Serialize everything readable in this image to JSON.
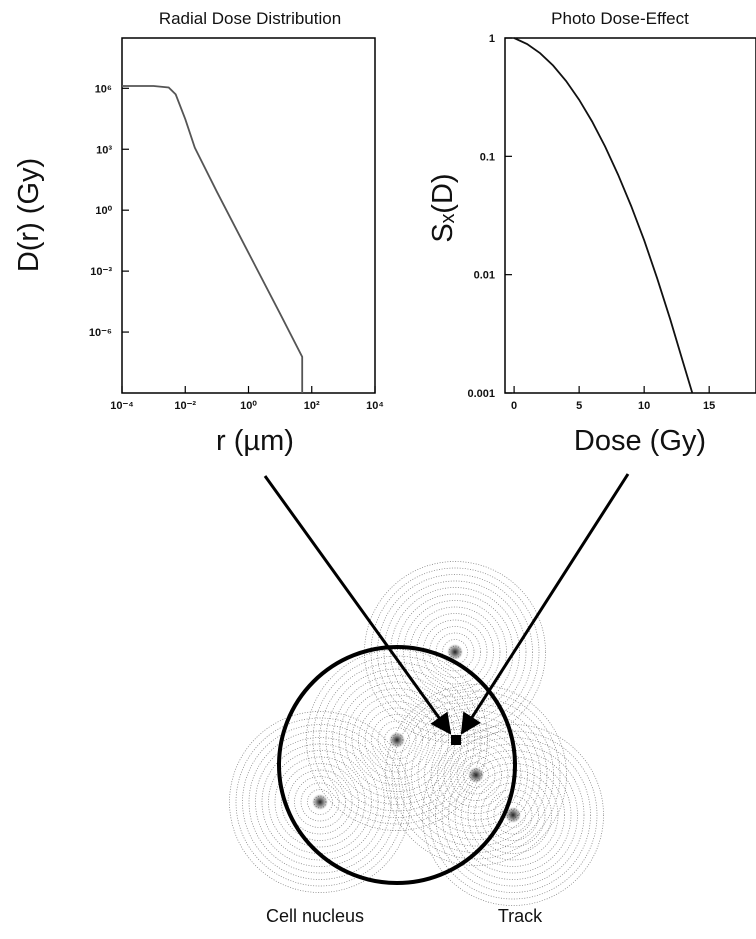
{
  "chart_data": [
    {
      "type": "line",
      "title": "Radial Dose Distribution",
      "xlabel": "r (µm)",
      "ylabel": "D(r) (Gy)",
      "xscale": "log",
      "yscale": "log",
      "color": "#555555",
      "x": [
        0.0001,
        0.001,
        0.003,
        0.005,
        0.01,
        0.02,
        0.1,
        1,
        10,
        50,
        50
      ],
      "values": [
        1300000,
        1300000,
        1100000,
        500000,
        30000,
        1200,
        8,
        0.008,
        8e-06,
        6e-08,
        1e-09
      ],
      "xlim": [
        0.0001,
        10000
      ],
      "ylim": [
        1e-09,
        300000000
      ],
      "xticks": [
        {
          "value": 0.0001,
          "label": "10⁻⁴"
        },
        {
          "value": 0.01,
          "label": "10⁻²"
        },
        {
          "value": 1,
          "label": "10⁰"
        },
        {
          "value": 100,
          "label": "10²"
        },
        {
          "value": 10000,
          "label": "10⁴"
        }
      ],
      "yticks": [
        {
          "value": 1e-06,
          "label": "10⁻⁶"
        },
        {
          "value": 0.001,
          "label": "10⁻³"
        },
        {
          "value": 1,
          "label": "10⁰"
        },
        {
          "value": 1000,
          "label": "10³"
        },
        {
          "value": 1000000,
          "label": "10⁶"
        }
      ]
    },
    {
      "type": "line",
      "title": "Photo Dose-Effect",
      "xlabel": "Dose (Gy)",
      "ylabel": "Sₓ(D)",
      "xscale": "linear",
      "yscale": "log",
      "color": "#111111",
      "x": [
        0,
        1,
        2,
        3,
        4,
        5,
        6,
        7,
        8,
        9,
        10,
        11,
        12,
        13,
        13.7
      ],
      "values": [
        1,
        0.89,
        0.744,
        0.586,
        0.433,
        0.301,
        0.197,
        0.121,
        0.07,
        0.038,
        0.0195,
        0.0093,
        0.0042,
        0.0018,
        0.001
      ],
      "xlim": [
        -0.7,
        18.6
      ],
      "ylim": [
        0.001,
        1
      ],
      "xticks": [
        0,
        5,
        10,
        15
      ],
      "yticks": [
        0.001,
        0.01,
        0.1,
        1
      ]
    }
  ],
  "diagram": {
    "labels": [
      "Cell nucleus",
      "Track"
    ]
  }
}
